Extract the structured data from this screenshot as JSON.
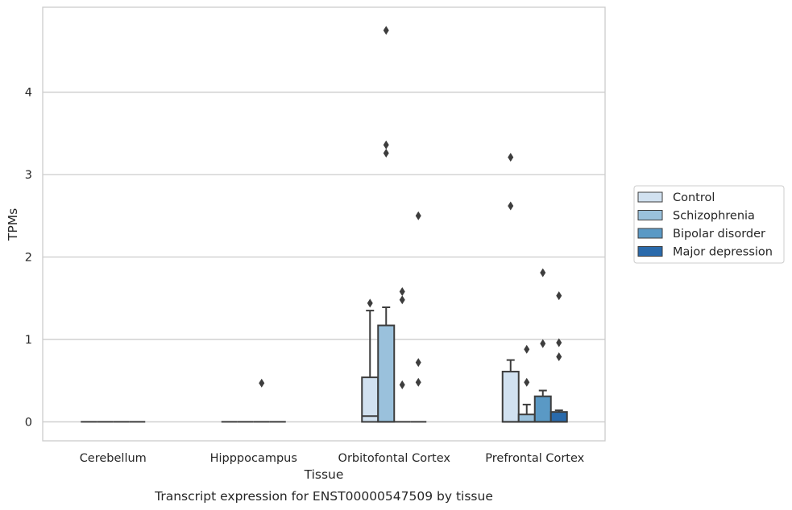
{
  "chart_data": {
    "type": "box",
    "title": "",
    "caption": "Transcript expression for ENST00000547509 by tissue",
    "xlabel": "Tissue",
    "ylabel": "TPMs",
    "ylim": [
      -0.23,
      5.03
    ],
    "yticks": [
      0,
      1,
      2,
      3,
      4
    ],
    "categories": [
      "Cerebellum",
      "Hipppocampus",
      "Orbitofontal Cortex",
      "Prefrontal Cortex"
    ],
    "grid": "horizontal",
    "legend_position": "right",
    "series": [
      {
        "name": "Control",
        "color": "#d1e1f0",
        "boxes": [
          {
            "q1": 0,
            "median": 0,
            "q3": 0,
            "whisker_low": 0,
            "whisker_high": 0,
            "outliers": []
          },
          {
            "q1": 0,
            "median": 0,
            "q3": 0,
            "whisker_low": 0,
            "whisker_high": 0,
            "outliers": []
          },
          {
            "q1": 0,
            "median": 0.07,
            "q3": 0.54,
            "whisker_low": 0,
            "whisker_high": 1.35,
            "outliers": [
              1.44
            ]
          },
          {
            "q1": 0,
            "median": 0,
            "q3": 0.61,
            "whisker_low": 0,
            "whisker_high": 0.75,
            "outliers": [
              2.62,
              3.21
            ]
          }
        ]
      },
      {
        "name": "Schizophrenia",
        "color": "#9ac1dc",
        "boxes": [
          {
            "q1": 0,
            "median": 0,
            "q3": 0,
            "whisker_low": 0,
            "whisker_high": 0,
            "outliers": []
          },
          {
            "q1": 0,
            "median": 0,
            "q3": 0,
            "whisker_low": 0,
            "whisker_high": 0,
            "outliers": []
          },
          {
            "q1": 0,
            "median": 0,
            "q3": 1.17,
            "whisker_low": 0,
            "whisker_high": 1.39,
            "outliers": [
              3.26,
              3.36,
              4.75
            ]
          },
          {
            "q1": 0,
            "median": 0,
            "q3": 0.09,
            "whisker_low": 0,
            "whisker_high": 0.21,
            "outliers": [
              0.48,
              0.88
            ]
          }
        ]
      },
      {
        "name": "Bipolar disorder",
        "color": "#5a99c5",
        "boxes": [
          {
            "q1": 0,
            "median": 0,
            "q3": 0,
            "whisker_low": 0,
            "whisker_high": 0,
            "outliers": []
          },
          {
            "q1": 0,
            "median": 0,
            "q3": 0,
            "whisker_low": 0,
            "whisker_high": 0,
            "outliers": [
              0.47
            ]
          },
          {
            "q1": 0,
            "median": 0,
            "q3": 0,
            "whisker_low": 0,
            "whisker_high": 0,
            "outliers": [
              0.45,
              1.48,
              1.58
            ]
          },
          {
            "q1": 0,
            "median": 0,
            "q3": 0.31,
            "whisker_low": 0,
            "whisker_high": 0.38,
            "outliers": [
              0.95,
              1.81
            ]
          }
        ]
      },
      {
        "name": "Major depression",
        "color": "#2a6aab",
        "boxes": [
          {
            "q1": 0,
            "median": 0,
            "q3": 0,
            "whisker_low": 0,
            "whisker_high": 0,
            "outliers": []
          },
          {
            "q1": 0,
            "median": 0,
            "q3": 0,
            "whisker_low": 0,
            "whisker_high": 0,
            "outliers": []
          },
          {
            "q1": 0,
            "median": 0,
            "q3": 0,
            "whisker_low": 0,
            "whisker_high": 0,
            "outliers": [
              0.48,
              0.72,
              2.5
            ]
          },
          {
            "q1": 0,
            "median": 0,
            "q3": 0.12,
            "whisker_low": 0,
            "whisker_high": 0.14,
            "outliers": [
              0.79,
              0.96,
              1.53
            ]
          }
        ]
      }
    ]
  }
}
